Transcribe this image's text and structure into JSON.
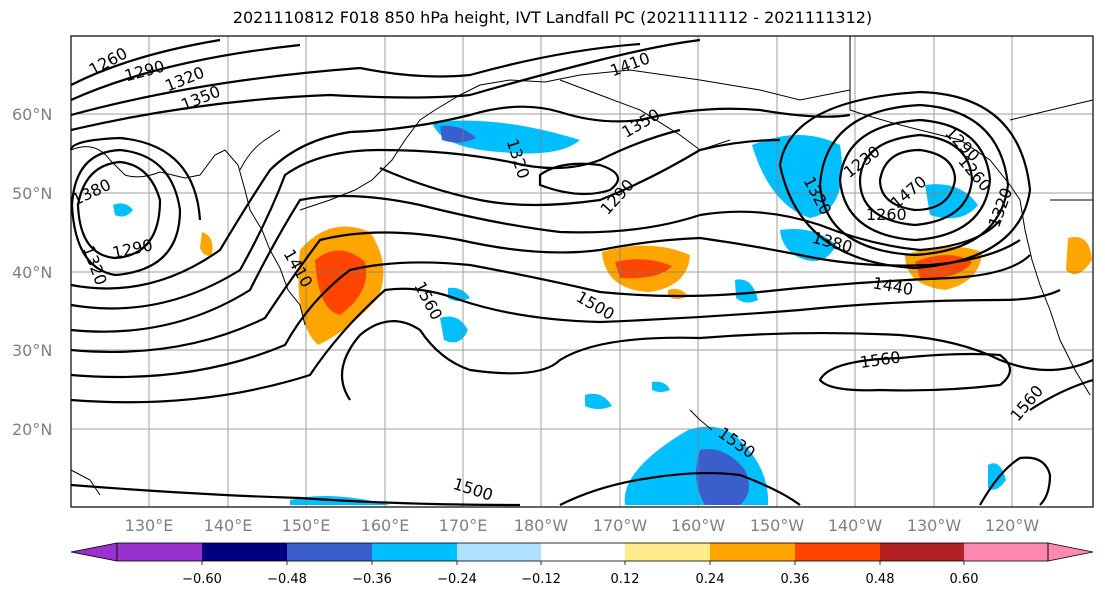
{
  "title": "2021110812 F018 850 hPa height, IVT Landfall PC (2021111112 - 2021111312)",
  "map": {
    "lat_labels": [
      "60°N",
      "50°N",
      "40°N",
      "30°N",
      "20°N"
    ],
    "lon_labels": [
      "130°E",
      "140°E",
      "150°E",
      "160°E",
      "170°E",
      "180°W",
      "170°W",
      "160°W",
      "150°W",
      "140°W",
      "130°W",
      "120°W"
    ],
    "contour_labels": [
      "1260",
      "1290",
      "1320",
      "1350",
      "1410",
      "1350",
      "1320",
      "1290",
      "1230",
      "1290",
      "1260",
      "1320",
      "1380",
      "1290",
      "1320",
      "1410",
      "1560",
      "1500",
      "1380",
      "1440",
      "1560",
      "1560",
      "1530",
      "1500",
      "1470",
      "1260",
      "1320"
    ],
    "colors": {
      "fill_pos_1": "#ffa500",
      "fill_pos_2": "#ff4500",
      "fill_pos_3": "#ffed8a",
      "fill_neg_1": "#00bfff",
      "fill_neg_2": "#3a5fcd",
      "fill_neg_3": "#add8ff",
      "contour": "#000000",
      "grid": "#808080"
    }
  },
  "colorbar": {
    "colors": [
      "#9932cc",
      "#000080",
      "#3a5fcd",
      "#00bfff",
      "#b0e0ff",
      "#ffffff",
      "#ffec8b",
      "#ffa500",
      "#ff4500",
      "#b22222",
      "#ff88b0"
    ],
    "ticks": [
      "−0.60",
      "−0.48",
      "−0.36",
      "−0.24",
      "−0.12",
      "0.12",
      "0.24",
      "0.36",
      "0.48",
      "0.60"
    ]
  }
}
